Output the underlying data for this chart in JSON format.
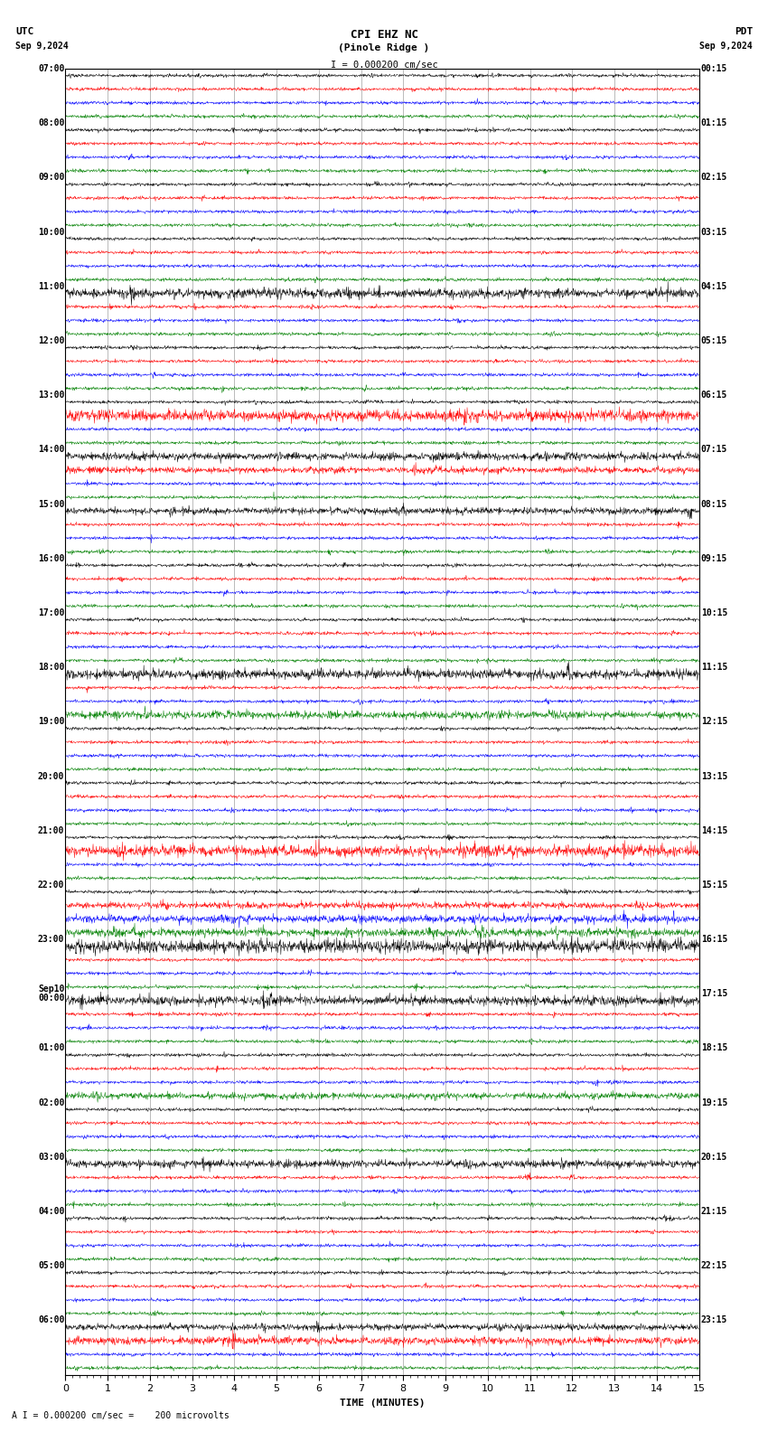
{
  "title_line1": "CPI EHZ NC",
  "title_line2": "(Pinole Ridge )",
  "scale_label": "I = 0.000200 cm/sec",
  "bottom_label": "A I = 0.000200 cm/sec =    200 microvolts",
  "xlabel": "TIME (MINUTES)",
  "utc_label": "UTC",
  "pdt_label": "PDT",
  "date_left": "Sep 9,2024",
  "date_right": "Sep 9,2024",
  "utc_times": [
    "07:00",
    "08:00",
    "09:00",
    "10:00",
    "11:00",
    "12:00",
    "13:00",
    "14:00",
    "15:00",
    "16:00",
    "17:00",
    "18:00",
    "19:00",
    "20:00",
    "21:00",
    "22:00",
    "23:00",
    "Sep10\n00:00",
    "01:00",
    "02:00",
    "03:00",
    "04:00",
    "05:00",
    "06:00"
  ],
  "pdt_times": [
    "00:15",
    "01:15",
    "02:15",
    "03:15",
    "04:15",
    "05:15",
    "06:15",
    "07:15",
    "08:15",
    "09:15",
    "10:15",
    "11:15",
    "12:15",
    "13:15",
    "14:15",
    "15:15",
    "16:15",
    "17:15",
    "18:15",
    "19:15",
    "20:15",
    "21:15",
    "22:15",
    "23:15"
  ],
  "colors": [
    "black",
    "red",
    "blue",
    "green"
  ],
  "n_hours": 24,
  "n_traces_per_hour": 4,
  "n_points": 1800,
  "x_min": 0,
  "x_max": 15,
  "background_color": "white",
  "amplitude": 0.055,
  "font_family": "monospace",
  "font_size_labels": 7,
  "font_size_title": 9,
  "font_size_axis": 8,
  "linewidth": 0.35,
  "grid_linewidth": 0.4,
  "grid_color": "#888888"
}
